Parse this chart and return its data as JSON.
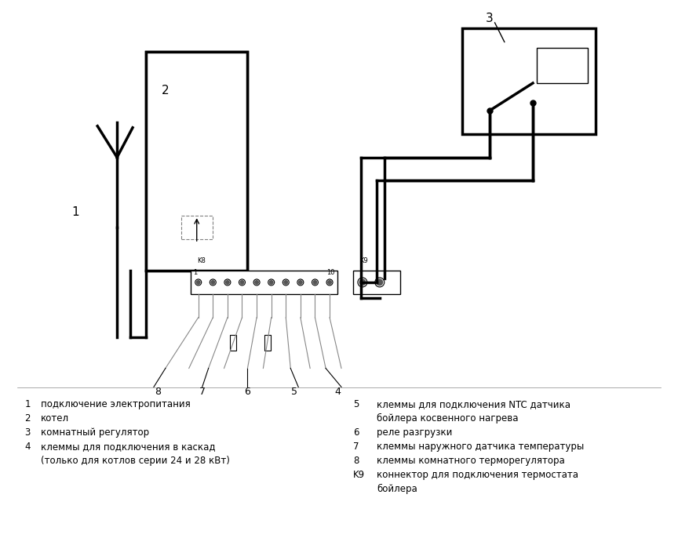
{
  "bg_color": "#ffffff",
  "line_color": "#000000",
  "line_width": 2.5,
  "thin_line": 1.0,
  "legend_items": [
    [
      "1",
      "подключение электропитания"
    ],
    [
      "2",
      "котел"
    ],
    [
      "3",
      "комнатный регулятор"
    ],
    [
      "4",
      "клеммы для подключения в каскад"
    ],
    [
      "",
      "(только для котлов серии 24 и 28 кВт)"
    ],
    [
      "5",
      "клеммы для подключения NTC датчика"
    ],
    [
      "",
      "бойлера косвенного нагрева"
    ],
    [
      "6",
      "реле разгрузки"
    ],
    [
      "7",
      "клеммы наружного датчика температуры"
    ],
    [
      "8",
      "клеммы комнатного терморегулятора"
    ],
    [
      "K9",
      "коннектор для подключения термостата"
    ],
    [
      "",
      "бойлера"
    ]
  ]
}
